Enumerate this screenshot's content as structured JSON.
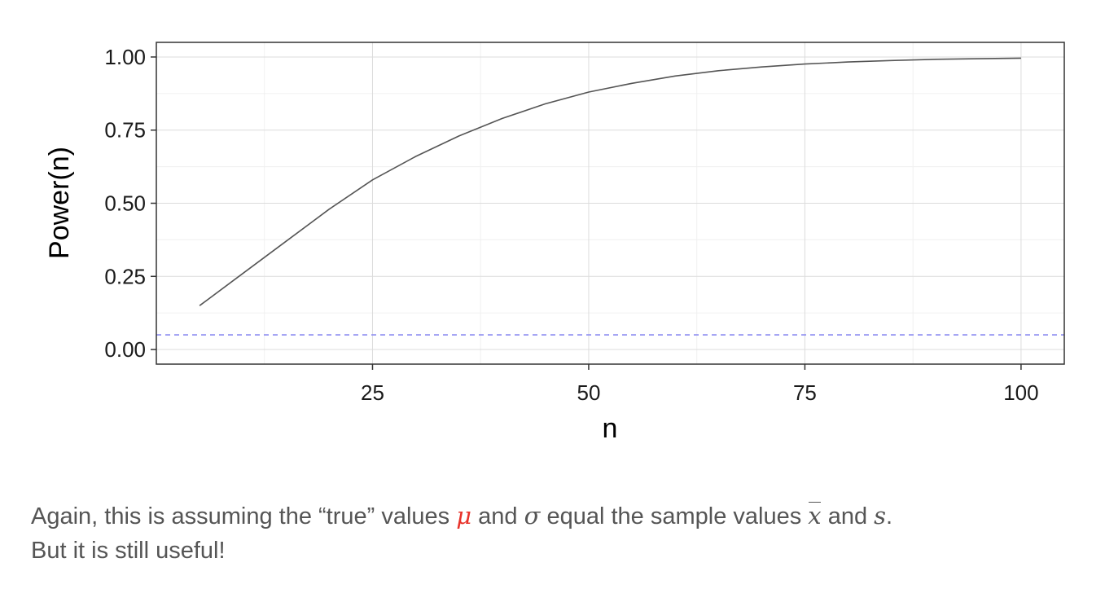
{
  "chart_data": {
    "type": "line",
    "xlabel": "n",
    "ylabel": "Power(n)",
    "xlim": [
      0,
      105
    ],
    "ylim": [
      -0.05,
      1.05
    ],
    "x_ticks": [
      25,
      50,
      75,
      100
    ],
    "x_tick_labels": [
      "25",
      "50",
      "75",
      "100"
    ],
    "y_ticks": [
      0,
      0.25,
      0.5,
      0.75,
      1
    ],
    "y_tick_labels": [
      "0.00",
      "0.25",
      "0.50",
      "0.75",
      "1.00"
    ],
    "grid": true,
    "series": [
      {
        "x": [
          5,
          10,
          15,
          20,
          25,
          30,
          35,
          40,
          45,
          50,
          55,
          60,
          65,
          70,
          75,
          80,
          85,
          90,
          95,
          100
        ],
        "y": [
          0.15,
          0.26,
          0.37,
          0.48,
          0.58,
          0.66,
          0.73,
          0.79,
          0.84,
          0.88,
          0.91,
          0.935,
          0.953,
          0.966,
          0.976,
          0.983,
          0.988,
          0.992,
          0.994,
          0.996
        ],
        "color": "#555555"
      }
    ],
    "reference_line": {
      "y": 0.05,
      "style": "dashed",
      "color": "#8c8cf0"
    }
  },
  "caption": {
    "line1": {
      "t1": "Again, this is assuming the “true” values ",
      "mu": "μ",
      "t2": " and ",
      "sigma": "σ",
      "t3": " equal the sample values ",
      "xbar": "x",
      "t4": " and ",
      "s": "s",
      "t5": "."
    },
    "line2": "But it is still useful!"
  }
}
